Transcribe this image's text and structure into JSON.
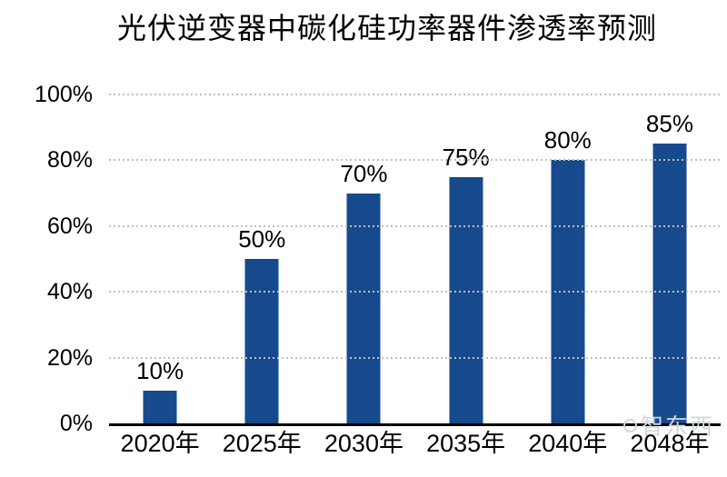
{
  "chart_data": {
    "type": "bar",
    "title": "光伏逆变器中碳化硅功率器件渗透率预测",
    "categories": [
      "2020年",
      "2025年",
      "2030年",
      "2035年",
      "2040年",
      "2048年"
    ],
    "values": [
      10,
      50,
      70,
      75,
      80,
      85
    ],
    "data_labels": [
      "10%",
      "50%",
      "70%",
      "75%",
      "80%",
      "85%"
    ],
    "y_tick_values": [
      0,
      20,
      40,
      60,
      80,
      100
    ],
    "y_tick_labels": [
      "0%",
      "20%",
      "40%",
      "60%",
      "80%",
      "100%"
    ],
    "ylim": [
      0,
      100
    ],
    "xlabel": "",
    "ylabel": "",
    "grid": "horizontal-dotted",
    "legend": "none",
    "bar_color": "#164A8C",
    "gridline_color": "#BFBFBF",
    "axis_line_color": "#000000"
  },
  "watermark": {
    "text": "智东西"
  }
}
